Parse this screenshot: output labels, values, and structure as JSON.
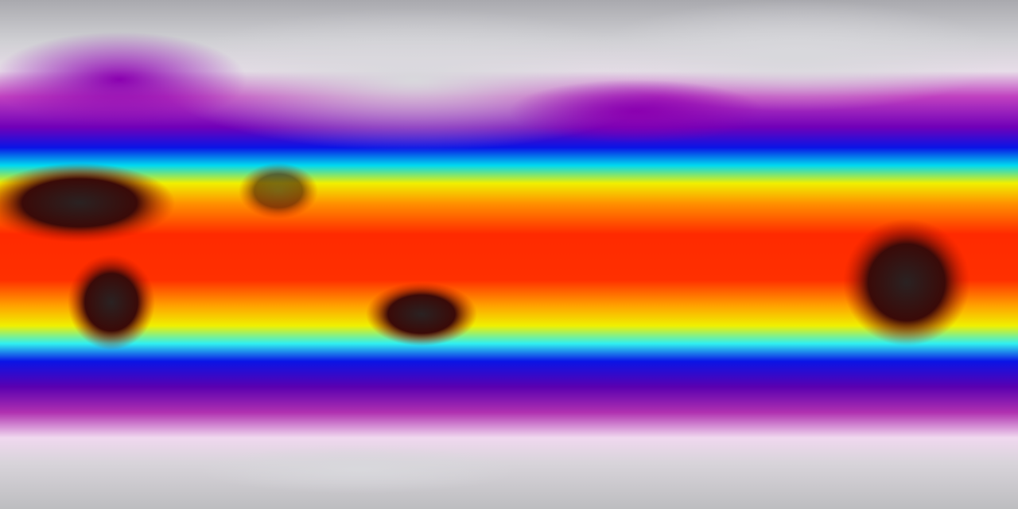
{
  "map": {
    "projection": "equirectangular",
    "variable_colormap": [
      "#a9a9ae",
      "#f2e6f2",
      "#c03cc0",
      "#6a00b0",
      "#0a10e0",
      "#00e0f0",
      "#f0f000",
      "#ff8000",
      "#ff1a00",
      "#8a0000",
      "#201818",
      "#555555"
    ],
    "land_dark_color": "#1c1414"
  }
}
